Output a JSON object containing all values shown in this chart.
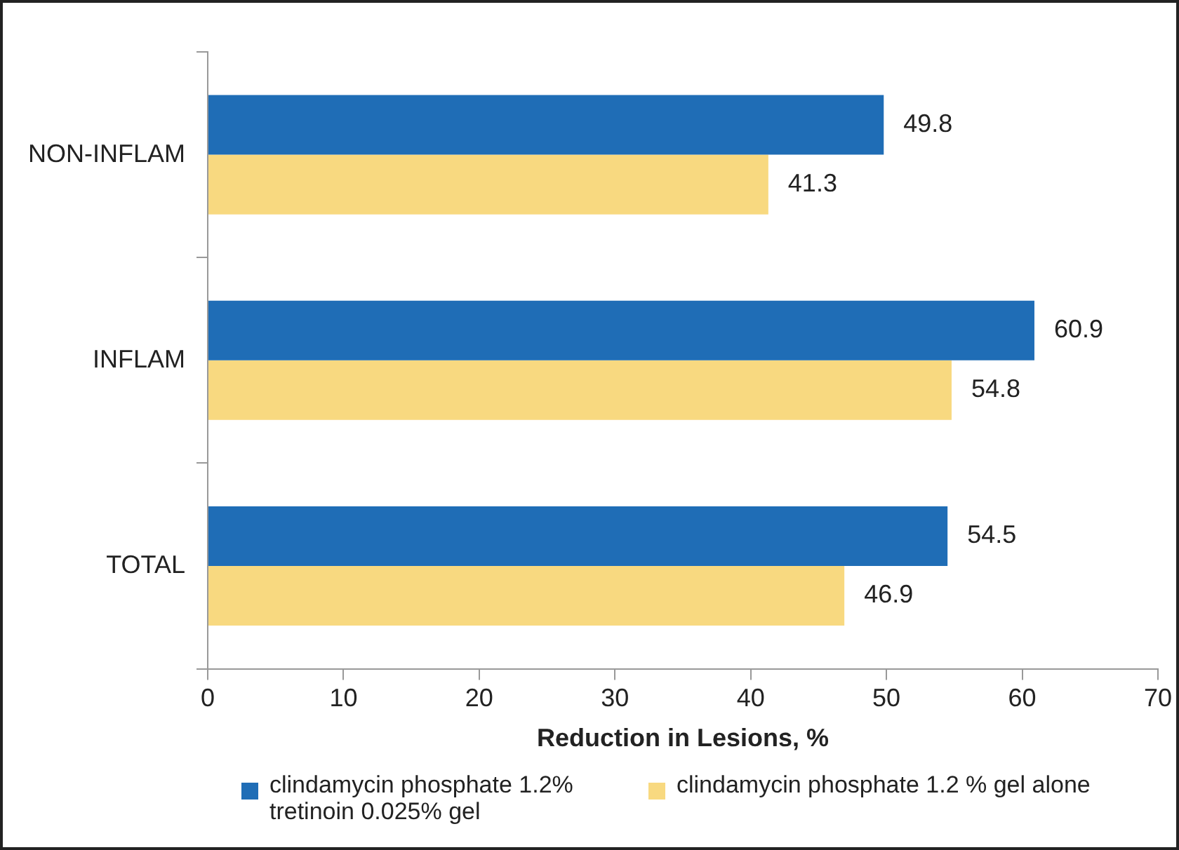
{
  "chart_data": {
    "type": "bar",
    "orientation": "horizontal",
    "categories": [
      "NON-INFLAM",
      "INFLAM",
      "TOTAL"
    ],
    "series": [
      {
        "name": "clindamycin phosphate 1.2% tretinoin 0.025% gel",
        "color": "#1f6db6",
        "values": [
          49.8,
          60.9,
          54.5
        ]
      },
      {
        "name": "clindamycin phosphate 1.2 % gel alone",
        "color": "#f8d980",
        "values": [
          41.3,
          54.8,
          46.9
        ]
      }
    ],
    "xlim": [
      0,
      70
    ],
    "xticks": [
      0,
      10,
      20,
      30,
      40,
      50,
      60,
      70
    ],
    "xlabel": "Reduction in Lesions, %",
    "data_labels": true,
    "grid": false,
    "legend": "bottom"
  }
}
